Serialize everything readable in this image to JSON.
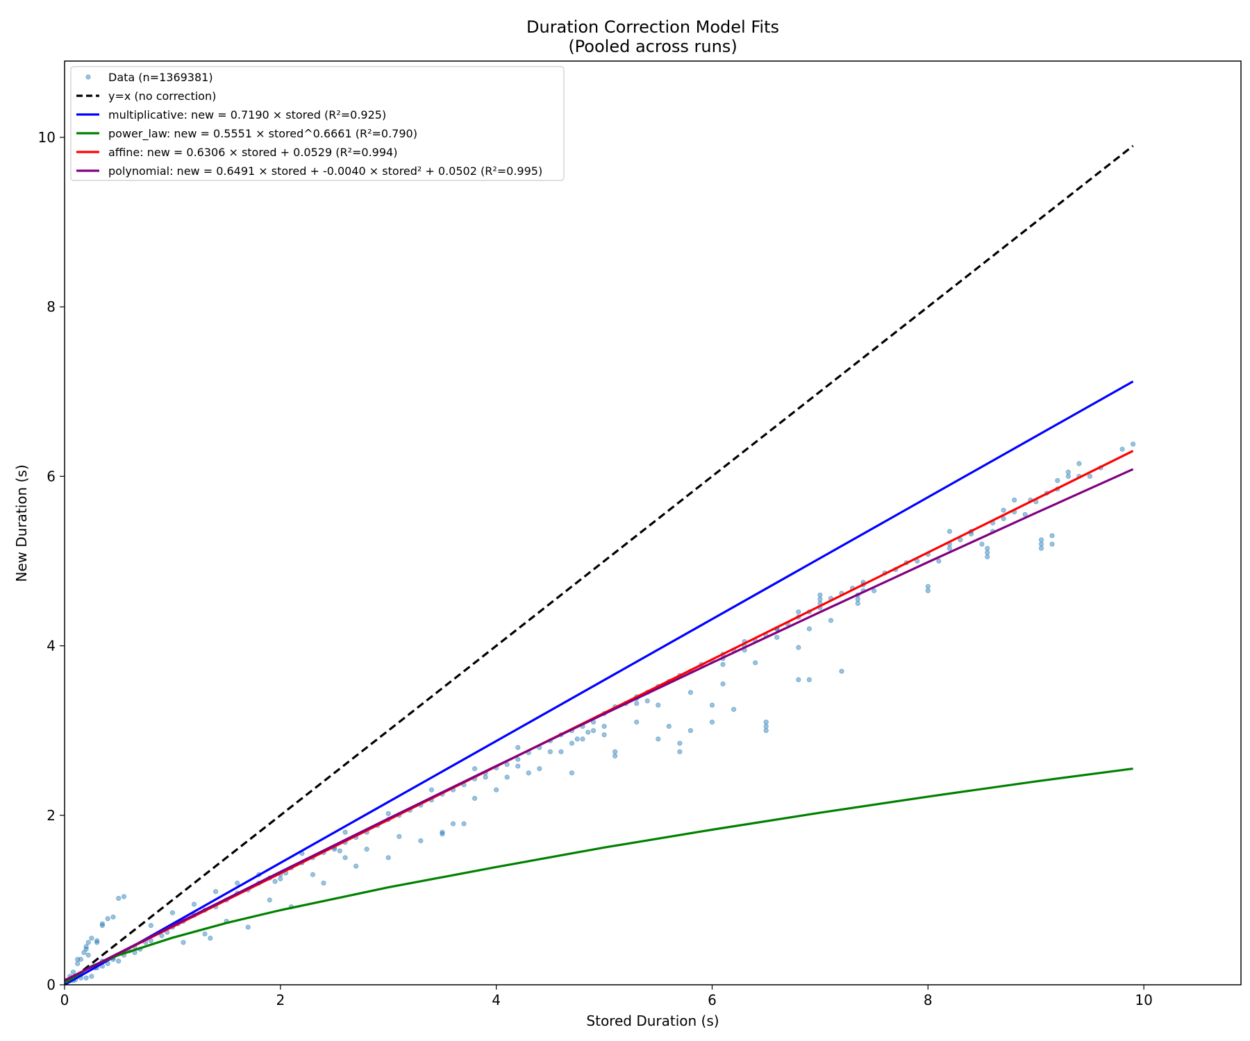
{
  "chart_data": {
    "type": "scatter",
    "title": "Duration Correction Model Fits",
    "subtitle": "(Pooled across runs)",
    "xlabel": "Stored Duration (s)",
    "ylabel": "New Duration (s)",
    "xlim": [
      0,
      10.9
    ],
    "ylim": [
      0,
      10.9
    ],
    "x_ticks": [
      0,
      2,
      4,
      6,
      8,
      10
    ],
    "y_ticks": [
      0,
      2,
      4,
      6,
      8,
      10
    ],
    "x_tick_labels": [
      "0",
      "2",
      "4",
      "6",
      "8",
      "10"
    ],
    "y_tick_labels": [
      "0",
      "2",
      "4",
      "6",
      "8",
      "10"
    ],
    "grid": false,
    "legend_position": "top-left",
    "colors": {
      "data": "#1f77b4",
      "identity": "#000000",
      "multiplicative": "#0000ff",
      "power_law": "#008000",
      "affine": "#ff0000",
      "polynomial": "#800080"
    },
    "legend": [
      {
        "label": "Data (n=1369381)",
        "style": "marker",
        "color": "#1f77b4"
      },
      {
        "label": "y=x (no correction)",
        "style": "dashed",
        "color": "#000000"
      },
      {
        "label": "multiplicative: new = 0.7190 × stored (R²=0.925)",
        "style": "line",
        "color": "#0000ff"
      },
      {
        "label": "power_law: new = 0.5551 × stored^0.6661 (R²=0.790)",
        "style": "line",
        "color": "#008000"
      },
      {
        "label": "affine: new = 0.6306 × stored + 0.0529 (R²=0.994)",
        "style": "line",
        "color": "#ff0000"
      },
      {
        "label": "polynomial: new = 0.6491 × stored + -0.0040 × stored² + 0.0502 (R²=0.995)",
        "style": "line",
        "color": "#800080"
      }
    ],
    "series": [
      {
        "name": "y=x (no correction)",
        "kind": "line",
        "x": [
          0,
          9.9
        ],
        "y": [
          0,
          9.9
        ]
      },
      {
        "name": "multiplicative",
        "kind": "line",
        "x": [
          0,
          9.9
        ],
        "y": [
          0,
          7.12
        ]
      },
      {
        "name": "power_law",
        "kind": "line",
        "x": [
          0.01,
          0.25,
          0.5,
          1,
          1.5,
          2,
          3,
          4,
          5,
          6,
          7,
          8,
          9,
          9.9
        ],
        "y": [
          0.026,
          0.22,
          0.35,
          0.555,
          0.73,
          0.88,
          1.15,
          1.39,
          1.62,
          1.83,
          2.03,
          2.22,
          2.4,
          2.55
        ]
      },
      {
        "name": "affine",
        "kind": "line",
        "x": [
          0,
          9.9
        ],
        "y": [
          0.053,
          6.3
        ]
      },
      {
        "name": "polynomial",
        "kind": "line",
        "x": [
          0,
          1,
          2,
          3,
          4,
          5,
          6,
          7,
          8,
          9,
          9.9
        ],
        "y": [
          0.05,
          0.695,
          1.332,
          1.961,
          2.582,
          3.196,
          3.801,
          4.398,
          4.987,
          5.568,
          6.084
        ]
      },
      {
        "name": "Data (n=1369381)",
        "kind": "scatter",
        "points": [
          [
            0.02,
            0.05
          ],
          [
            0.05,
            0.1
          ],
          [
            0.08,
            0.15
          ],
          [
            0.1,
            0.1
          ],
          [
            0.12,
            0.25
          ],
          [
            0.15,
            0.3
          ],
          [
            0.18,
            0.38
          ],
          [
            0.2,
            0.45
          ],
          [
            0.22,
            0.5
          ],
          [
            0.25,
            0.55
          ],
          [
            0.3,
            0.52
          ],
          [
            0.35,
            0.7
          ],
          [
            0.4,
            0.78
          ],
          [
            0.5,
            1.02
          ],
          [
            0.55,
            1.04
          ],
          [
            0.05,
            0.05
          ],
          [
            0.1,
            0.06
          ],
          [
            0.15,
            0.12
          ],
          [
            0.2,
            0.08
          ],
          [
            0.25,
            0.1
          ],
          [
            0.3,
            0.2
          ],
          [
            0.35,
            0.22
          ],
          [
            0.4,
            0.25
          ],
          [
            0.45,
            0.3
          ],
          [
            0.5,
            0.28
          ],
          [
            0.55,
            0.35
          ],
          [
            0.6,
            0.4
          ],
          [
            0.65,
            0.38
          ],
          [
            0.7,
            0.42
          ],
          [
            0.8,
            0.52
          ],
          [
            0.9,
            0.58
          ],
          [
            1.0,
            0.68
          ],
          [
            1.1,
            0.75
          ],
          [
            1.2,
            0.82
          ],
          [
            1.3,
            0.88
          ],
          [
            1.4,
            0.92
          ],
          [
            1.5,
            1.0
          ],
          [
            1.6,
            1.08
          ],
          [
            1.7,
            1.12
          ],
          [
            1.8,
            1.2
          ],
          [
            1.9,
            1.26
          ],
          [
            2.0,
            1.3
          ],
          [
            2.1,
            1.38
          ],
          [
            2.2,
            1.44
          ],
          [
            2.3,
            1.5
          ],
          [
            2.4,
            1.56
          ],
          [
            2.5,
            1.62
          ],
          [
            2.6,
            1.68
          ],
          [
            2.7,
            1.74
          ],
          [
            2.8,
            1.8
          ],
          [
            2.9,
            1.88
          ],
          [
            3.0,
            1.95
          ],
          [
            3.1,
            2.0
          ],
          [
            3.2,
            2.06
          ],
          [
            3.3,
            2.12
          ],
          [
            3.4,
            2.18
          ],
          [
            3.5,
            2.25
          ],
          [
            3.6,
            2.3
          ],
          [
            3.7,
            2.36
          ],
          [
            3.8,
            2.43
          ],
          [
            3.9,
            2.5
          ],
          [
            4.0,
            2.56
          ],
          [
            4.1,
            2.6
          ],
          [
            4.2,
            2.66
          ],
          [
            4.3,
            2.74
          ],
          [
            4.4,
            2.8
          ],
          [
            4.5,
            2.88
          ],
          [
            4.6,
            2.95
          ],
          [
            4.7,
            3.0
          ],
          [
            4.8,
            3.05
          ],
          [
            4.9,
            3.1
          ],
          [
            5.0,
            3.2
          ],
          [
            5.1,
            3.28
          ],
          [
            5.2,
            3.32
          ],
          [
            5.3,
            3.4
          ],
          [
            5.4,
            3.45
          ],
          [
            5.5,
            3.52
          ],
          [
            5.6,
            3.58
          ],
          [
            5.7,
            3.65
          ],
          [
            5.8,
            3.7
          ],
          [
            5.9,
            3.78
          ],
          [
            6.0,
            3.82
          ],
          [
            6.1,
            3.9
          ],
          [
            6.2,
            3.95
          ],
          [
            6.3,
            4.0
          ],
          [
            6.4,
            4.06
          ],
          [
            6.5,
            4.12
          ],
          [
            6.6,
            4.2
          ],
          [
            6.7,
            4.26
          ],
          [
            6.8,
            4.34
          ],
          [
            6.9,
            4.4
          ],
          [
            7.0,
            4.5
          ],
          [
            7.1,
            4.56
          ],
          [
            7.2,
            4.62
          ],
          [
            7.3,
            4.68
          ],
          [
            7.4,
            4.75
          ],
          [
            7.6,
            4.86
          ],
          [
            7.8,
            4.98
          ],
          [
            8.0,
            5.08
          ],
          [
            8.2,
            5.2
          ],
          [
            8.4,
            5.32
          ],
          [
            8.6,
            5.45
          ],
          [
            8.8,
            5.58
          ],
          [
            9.0,
            5.7
          ],
          [
            9.2,
            5.85
          ],
          [
            9.4,
            6.0
          ],
          [
            9.6,
            6.1
          ],
          [
            9.9,
            6.38
          ],
          [
            0.8,
            0.7
          ],
          [
            1.0,
            0.85
          ],
          [
            1.2,
            0.95
          ],
          [
            1.4,
            1.1
          ],
          [
            1.6,
            1.2
          ],
          [
            1.8,
            1.3
          ],
          [
            2.2,
            1.55
          ],
          [
            2.6,
            1.8
          ],
          [
            3.0,
            2.02
          ],
          [
            3.4,
            2.3
          ],
          [
            3.8,
            2.55
          ],
          [
            4.2,
            2.8
          ],
          [
            1.3,
            0.6
          ],
          [
            1.5,
            0.75
          ],
          [
            1.9,
            1.0
          ],
          [
            2.3,
            1.3
          ],
          [
            2.6,
            1.5
          ],
          [
            2.8,
            1.6
          ],
          [
            3.1,
            1.75
          ],
          [
            3.5,
            1.8
          ],
          [
            3.7,
            1.9
          ],
          [
            4.0,
            2.3
          ],
          [
            4.3,
            2.5
          ],
          [
            4.6,
            2.75
          ],
          [
            4.8,
            2.9
          ],
          [
            5.1,
            2.7
          ],
          [
            5.1,
            2.75
          ],
          [
            5.5,
            2.9
          ],
          [
            5.6,
            3.05
          ],
          [
            5.7,
            2.85
          ],
          [
            5.7,
            2.75
          ],
          [
            5.8,
            3.0
          ],
          [
            6.0,
            3.1
          ],
          [
            6.0,
            3.3
          ],
          [
            6.2,
            3.25
          ],
          [
            6.5,
            3.0
          ],
          [
            6.5,
            3.1
          ],
          [
            6.5,
            3.05
          ],
          [
            6.8,
            3.6
          ],
          [
            6.8,
            3.98
          ],
          [
            6.9,
            3.6
          ],
          [
            7.2,
            3.7
          ],
          [
            7.35,
            4.55
          ],
          [
            7.35,
            4.6
          ],
          [
            7.35,
            4.5
          ],
          [
            8.0,
            4.7
          ],
          [
            8.0,
            4.65
          ],
          [
            8.1,
            5.0
          ],
          [
            8.5,
            5.2
          ],
          [
            8.55,
            5.05
          ],
          [
            8.55,
            5.15
          ],
          [
            8.55,
            5.1
          ],
          [
            9.05,
            5.15
          ],
          [
            9.05,
            5.25
          ],
          [
            9.05,
            5.2
          ],
          [
            9.15,
            5.2
          ],
          [
            9.15,
            5.3
          ],
          [
            4.7,
            2.85
          ],
          [
            4.75,
            2.9
          ],
          [
            4.9,
            3.0
          ],
          [
            5.0,
            3.05
          ],
          [
            4.85,
            2.98
          ],
          [
            5.3,
            3.38
          ],
          [
            5.3,
            3.32
          ],
          [
            5.4,
            3.35
          ],
          [
            6.1,
            3.78
          ],
          [
            6.1,
            3.85
          ],
          [
            6.3,
            4.05
          ],
          [
            6.3,
            3.95
          ],
          [
            6.6,
            4.1
          ],
          [
            6.6,
            4.2
          ],
          [
            7.0,
            4.45
          ],
          [
            7.0,
            4.6
          ],
          [
            7.0,
            4.55
          ],
          [
            7.4,
            4.65
          ],
          [
            7.4,
            4.72
          ],
          [
            8.2,
            5.15
          ],
          [
            8.2,
            5.35
          ],
          [
            8.4,
            5.35
          ],
          [
            8.7,
            5.5
          ],
          [
            8.7,
            5.6
          ],
          [
            8.8,
            5.72
          ],
          [
            9.3,
            6.0
          ],
          [
            9.3,
            6.05
          ],
          [
            9.4,
            6.15
          ],
          [
            9.2,
            5.95
          ],
          [
            8.95,
            5.72
          ],
          [
            6.8,
            4.4
          ],
          [
            3.9,
            2.45
          ],
          [
            4.2,
            2.58
          ],
          [
            4.5,
            2.75
          ],
          [
            1.05,
            0.72
          ],
          [
            0.95,
            0.62
          ],
          [
            0.75,
            0.5
          ],
          [
            0.65,
            0.45
          ],
          [
            0.45,
            0.32
          ],
          [
            0.35,
            0.28
          ],
          [
            0.28,
            0.2
          ],
          [
            0.15,
            0.08
          ],
          [
            0.08,
            0.05
          ],
          [
            0.12,
            0.3
          ],
          [
            0.2,
            0.42
          ],
          [
            0.22,
            0.35
          ],
          [
            0.3,
            0.5
          ],
          [
            0.35,
            0.72
          ],
          [
            0.45,
            0.8
          ],
          [
            1.1,
            0.5
          ],
          [
            1.35,
            0.55
          ],
          [
            1.7,
            0.68
          ],
          [
            2.1,
            0.92
          ],
          [
            2.4,
            1.2
          ],
          [
            2.7,
            1.4
          ],
          [
            3.0,
            1.5
          ],
          [
            3.3,
            1.7
          ],
          [
            3.5,
            1.78
          ],
          [
            3.6,
            1.9
          ],
          [
            3.8,
            2.2
          ],
          [
            4.1,
            2.45
          ],
          [
            4.4,
            2.55
          ],
          [
            4.7,
            2.5
          ],
          [
            5.0,
            2.95
          ],
          [
            5.3,
            3.1
          ],
          [
            5.5,
            3.3
          ],
          [
            5.8,
            3.45
          ],
          [
            6.1,
            3.55
          ],
          [
            6.4,
            3.8
          ],
          [
            6.9,
            4.2
          ],
          [
            7.1,
            4.3
          ],
          [
            7.5,
            4.65
          ],
          [
            7.7,
            4.9
          ],
          [
            7.9,
            5.0
          ],
          [
            8.3,
            5.25
          ],
          [
            8.6,
            5.35
          ],
          [
            8.9,
            5.55
          ],
          [
            9.1,
            5.8
          ],
          [
            9.5,
            6.0
          ],
          [
            9.8,
            6.32
          ],
          [
            2.0,
            1.25
          ],
          [
            2.05,
            1.32
          ],
          [
            1.95,
            1.22
          ],
          [
            2.5,
            1.6
          ],
          [
            2.55,
            1.58
          ]
        ]
      }
    ]
  }
}
